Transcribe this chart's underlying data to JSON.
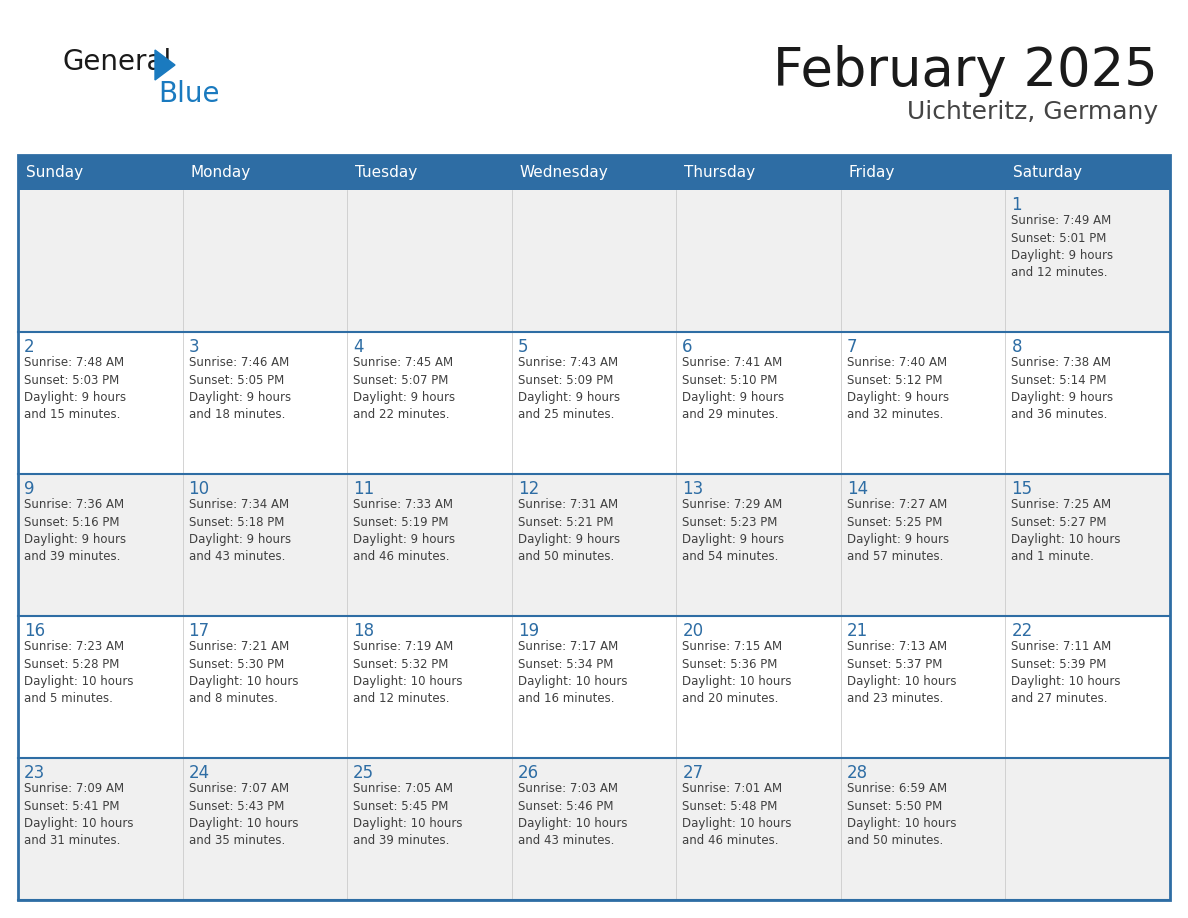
{
  "title": "February 2025",
  "subtitle": "Uichteritz, Germany",
  "days_of_week": [
    "Sunday",
    "Monday",
    "Tuesday",
    "Wednesday",
    "Thursday",
    "Friday",
    "Saturday"
  ],
  "header_bg": "#2E6DA4",
  "header_text": "#FFFFFF",
  "cell_bg_odd": "#FFFFFF",
  "cell_bg_even": "#F0F0F0",
  "day_num_color": "#2E6DA4",
  "text_color": "#404040",
  "border_color": "#2E6DA4",
  "row_sep_color": "#2E6DA4",
  "logo_general_color": "#1a1a1a",
  "logo_blue_color": "#1a7abf",
  "weeks": [
    [
      {
        "day": null,
        "info": null
      },
      {
        "day": null,
        "info": null
      },
      {
        "day": null,
        "info": null
      },
      {
        "day": null,
        "info": null
      },
      {
        "day": null,
        "info": null
      },
      {
        "day": null,
        "info": null
      },
      {
        "day": 1,
        "info": "Sunrise: 7:49 AM\nSunset: 5:01 PM\nDaylight: 9 hours\nand 12 minutes."
      }
    ],
    [
      {
        "day": 2,
        "info": "Sunrise: 7:48 AM\nSunset: 5:03 PM\nDaylight: 9 hours\nand 15 minutes."
      },
      {
        "day": 3,
        "info": "Sunrise: 7:46 AM\nSunset: 5:05 PM\nDaylight: 9 hours\nand 18 minutes."
      },
      {
        "day": 4,
        "info": "Sunrise: 7:45 AM\nSunset: 5:07 PM\nDaylight: 9 hours\nand 22 minutes."
      },
      {
        "day": 5,
        "info": "Sunrise: 7:43 AM\nSunset: 5:09 PM\nDaylight: 9 hours\nand 25 minutes."
      },
      {
        "day": 6,
        "info": "Sunrise: 7:41 AM\nSunset: 5:10 PM\nDaylight: 9 hours\nand 29 minutes."
      },
      {
        "day": 7,
        "info": "Sunrise: 7:40 AM\nSunset: 5:12 PM\nDaylight: 9 hours\nand 32 minutes."
      },
      {
        "day": 8,
        "info": "Sunrise: 7:38 AM\nSunset: 5:14 PM\nDaylight: 9 hours\nand 36 minutes."
      }
    ],
    [
      {
        "day": 9,
        "info": "Sunrise: 7:36 AM\nSunset: 5:16 PM\nDaylight: 9 hours\nand 39 minutes."
      },
      {
        "day": 10,
        "info": "Sunrise: 7:34 AM\nSunset: 5:18 PM\nDaylight: 9 hours\nand 43 minutes."
      },
      {
        "day": 11,
        "info": "Sunrise: 7:33 AM\nSunset: 5:19 PM\nDaylight: 9 hours\nand 46 minutes."
      },
      {
        "day": 12,
        "info": "Sunrise: 7:31 AM\nSunset: 5:21 PM\nDaylight: 9 hours\nand 50 minutes."
      },
      {
        "day": 13,
        "info": "Sunrise: 7:29 AM\nSunset: 5:23 PM\nDaylight: 9 hours\nand 54 minutes."
      },
      {
        "day": 14,
        "info": "Sunrise: 7:27 AM\nSunset: 5:25 PM\nDaylight: 9 hours\nand 57 minutes."
      },
      {
        "day": 15,
        "info": "Sunrise: 7:25 AM\nSunset: 5:27 PM\nDaylight: 10 hours\nand 1 minute."
      }
    ],
    [
      {
        "day": 16,
        "info": "Sunrise: 7:23 AM\nSunset: 5:28 PM\nDaylight: 10 hours\nand 5 minutes."
      },
      {
        "day": 17,
        "info": "Sunrise: 7:21 AM\nSunset: 5:30 PM\nDaylight: 10 hours\nand 8 minutes."
      },
      {
        "day": 18,
        "info": "Sunrise: 7:19 AM\nSunset: 5:32 PM\nDaylight: 10 hours\nand 12 minutes."
      },
      {
        "day": 19,
        "info": "Sunrise: 7:17 AM\nSunset: 5:34 PM\nDaylight: 10 hours\nand 16 minutes."
      },
      {
        "day": 20,
        "info": "Sunrise: 7:15 AM\nSunset: 5:36 PM\nDaylight: 10 hours\nand 20 minutes."
      },
      {
        "day": 21,
        "info": "Sunrise: 7:13 AM\nSunset: 5:37 PM\nDaylight: 10 hours\nand 23 minutes."
      },
      {
        "day": 22,
        "info": "Sunrise: 7:11 AM\nSunset: 5:39 PM\nDaylight: 10 hours\nand 27 minutes."
      }
    ],
    [
      {
        "day": 23,
        "info": "Sunrise: 7:09 AM\nSunset: 5:41 PM\nDaylight: 10 hours\nand 31 minutes."
      },
      {
        "day": 24,
        "info": "Sunrise: 7:07 AM\nSunset: 5:43 PM\nDaylight: 10 hours\nand 35 minutes."
      },
      {
        "day": 25,
        "info": "Sunrise: 7:05 AM\nSunset: 5:45 PM\nDaylight: 10 hours\nand 39 minutes."
      },
      {
        "day": 26,
        "info": "Sunrise: 7:03 AM\nSunset: 5:46 PM\nDaylight: 10 hours\nand 43 minutes."
      },
      {
        "day": 27,
        "info": "Sunrise: 7:01 AM\nSunset: 5:48 PM\nDaylight: 10 hours\nand 46 minutes."
      },
      {
        "day": 28,
        "info": "Sunrise: 6:59 AM\nSunset: 5:50 PM\nDaylight: 10 hours\nand 50 minutes."
      },
      {
        "day": null,
        "info": null
      }
    ]
  ]
}
